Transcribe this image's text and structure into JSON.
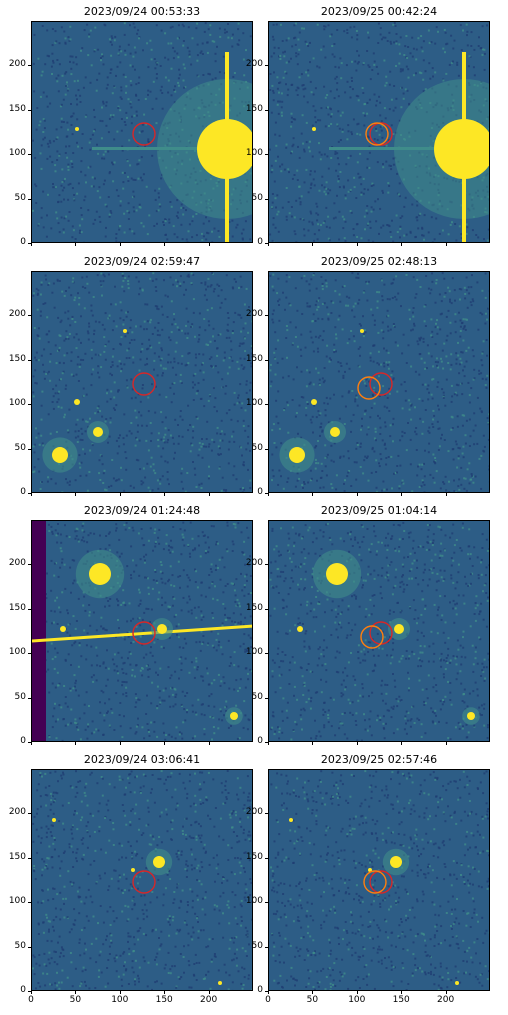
{
  "panels": [
    {
      "title": "2023/09/24 00:53:33"
    },
    {
      "title": "2023/09/25 00:42:24"
    },
    {
      "title": "2023/09/24 02:59:47"
    },
    {
      "title": "2023/09/25 02:48:13"
    },
    {
      "title": "2023/09/24 01:24:48"
    },
    {
      "title": "2023/09/25 01:04:14"
    },
    {
      "title": "2023/09/24 03:06:41"
    },
    {
      "title": "2023/09/25 02:57:46"
    }
  ],
  "y_ticks": [
    "0",
    "50",
    "100",
    "150",
    "200"
  ],
  "x_ticks": [
    "0",
    "50",
    "100",
    "150",
    "200"
  ],
  "colors": {
    "background": "#2d5d86",
    "noise_light": "#3f8c8a",
    "star": "#fde725",
    "edge_band": "#440154",
    "circle_red": "#d62728",
    "circle_orange": "#ff7f0e"
  }
}
